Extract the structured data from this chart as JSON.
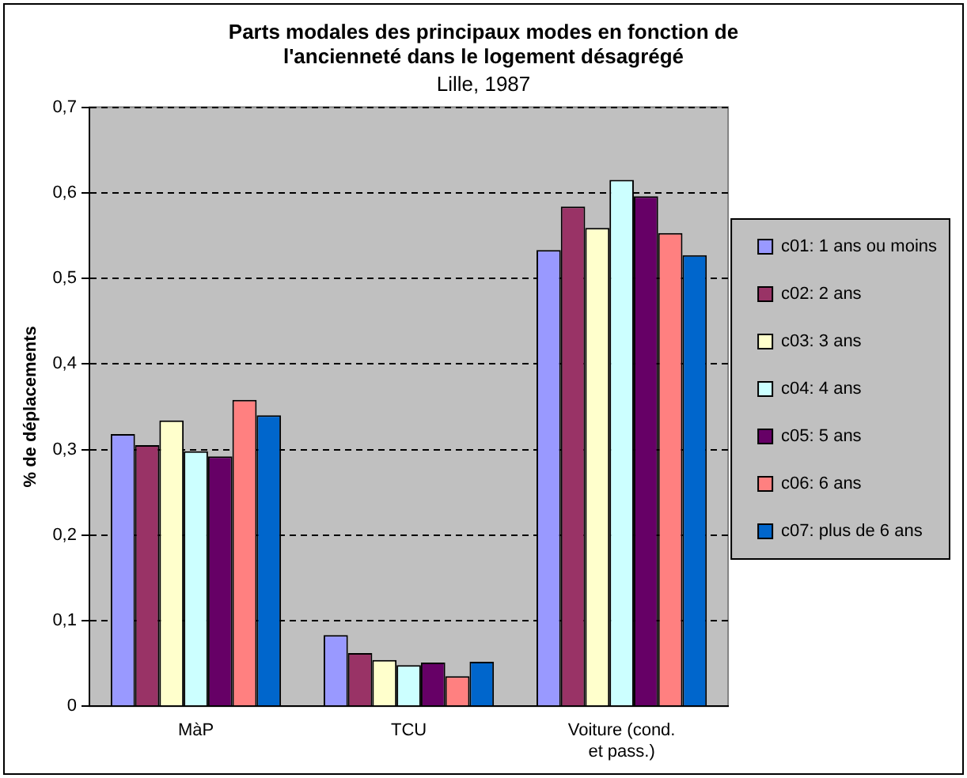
{
  "chart_data": {
    "type": "bar",
    "title": "Parts modales des principaux modes en fonction de l'ancienneté dans le logement désagrégé",
    "subtitle": "Lille, 1987",
    "ylabel": "% de déplacements",
    "categories": [
      "MàP",
      "TCU",
      "Voiture (cond. et pass.)"
    ],
    "series": [
      {
        "name": "c01: 1 ans ou moins",
        "color": "#9999ff",
        "values": [
          0.318,
          0.083,
          0.533
        ]
      },
      {
        "name": "c02: 2 ans",
        "color": "#993366",
        "values": [
          0.305,
          0.062,
          0.584
        ]
      },
      {
        "name": "c03: 3 ans",
        "color": "#ffffcc",
        "values": [
          0.334,
          0.054,
          0.559
        ]
      },
      {
        "name": "c04: 4 ans",
        "color": "#ccffff",
        "values": [
          0.298,
          0.048,
          0.615
        ]
      },
      {
        "name": "c05: 5 ans",
        "color": "#660066",
        "values": [
          0.292,
          0.051,
          0.596
        ]
      },
      {
        "name": "c06: 6 ans",
        "color": "#ff8080",
        "values": [
          0.358,
          0.035,
          0.553
        ]
      },
      {
        "name": "c07: plus de 6 ans",
        "color": "#0066cc",
        "values": [
          0.34,
          0.052,
          0.527
        ]
      }
    ],
    "ylim": [
      0,
      0.7
    ],
    "yticks": [
      0,
      {
        "value": 0.1,
        "label": "0,1"
      },
      {
        "value": 0.2,
        "label": "0,2"
      },
      {
        "value": 0.3,
        "label": "0,3"
      },
      {
        "value": 0.4,
        "label": "0,4"
      },
      {
        "value": 0.5,
        "label": "0,5"
      },
      {
        "value": 0.6,
        "label": "0,6"
      },
      {
        "value": 0.7,
        "label": "0,7"
      }
    ],
    "grid": "y",
    "legend": "right"
  }
}
